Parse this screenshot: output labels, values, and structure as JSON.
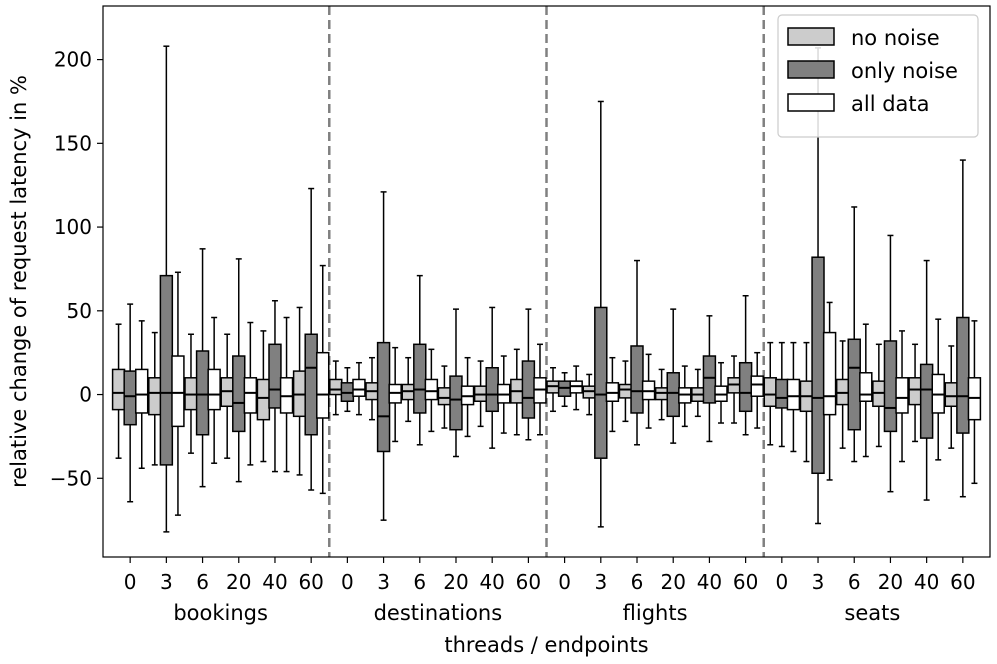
{
  "chart_data": {
    "type": "box",
    "title": "",
    "xlabel": "threads / endpoints",
    "ylabel": "relative change of request latency in %",
    "ylim": [
      -97,
      232
    ],
    "yticks": [
      -50,
      0,
      50,
      100,
      150,
      200
    ],
    "grid": false,
    "threads": [
      "0",
      "3",
      "6",
      "20",
      "40",
      "60"
    ],
    "endpoints": [
      "bookings",
      "destinations",
      "flights",
      "seats"
    ],
    "legend": {
      "position": "top-right",
      "entries": [
        {
          "name": "no noise",
          "color": "#cccccc"
        },
        {
          "name": "only noise",
          "color": "#808080"
        },
        {
          "name": "all data",
          "color": "#ffffff"
        }
      ]
    },
    "series": [
      {
        "name": "no noise",
        "color": "#cccccc",
        "boxes": [
          {
            "endpoint": "bookings",
            "threads": "0",
            "min": -38,
            "q1": -9,
            "median": 1,
            "q3": 15,
            "max": 42
          },
          {
            "endpoint": "bookings",
            "threads": "3",
            "min": -42,
            "q1": -12,
            "median": 1,
            "q3": 10,
            "max": 37
          },
          {
            "endpoint": "bookings",
            "threads": "6",
            "min": -35,
            "q1": -9,
            "median": 0,
            "q3": 10,
            "max": 36
          },
          {
            "endpoint": "bookings",
            "threads": "20",
            "min": -38,
            "q1": -7,
            "median": 2,
            "q3": 10,
            "max": 36
          },
          {
            "endpoint": "bookings",
            "threads": "40",
            "min": -40,
            "q1": -15,
            "median": -2,
            "q3": 9,
            "max": 38
          },
          {
            "endpoint": "bookings",
            "threads": "60",
            "min": -48,
            "q1": -13,
            "median": 0,
            "q3": 14,
            "max": 52
          },
          {
            "endpoint": "destinations",
            "threads": "0",
            "min": -12,
            "q1": 0,
            "median": 3,
            "q3": 9,
            "max": 20
          },
          {
            "endpoint": "destinations",
            "threads": "3",
            "min": -15,
            "q1": -3,
            "median": 2,
            "q3": 7,
            "max": 22
          },
          {
            "endpoint": "destinations",
            "threads": "6",
            "min": -16,
            "q1": -3,
            "median": 2,
            "q3": 6,
            "max": 22
          },
          {
            "endpoint": "destinations",
            "threads": "20",
            "min": -20,
            "q1": -6,
            "median": -2,
            "q3": 4,
            "max": 17
          },
          {
            "endpoint": "destinations",
            "threads": "40",
            "min": -19,
            "q1": -4,
            "median": 0,
            "q3": 5,
            "max": 20
          },
          {
            "endpoint": "destinations",
            "threads": "60",
            "min": -24,
            "q1": -5,
            "median": 2,
            "q3": 9,
            "max": 27
          },
          {
            "endpoint": "flights",
            "threads": "0",
            "min": -10,
            "q1": 1,
            "median": 5,
            "q3": 8,
            "max": 16
          },
          {
            "endpoint": "flights",
            "threads": "3",
            "min": -12,
            "q1": -2,
            "median": 2,
            "q3": 5,
            "max": 12
          },
          {
            "endpoint": "flights",
            "threads": "6",
            "min": -16,
            "q1": -2,
            "median": 3,
            "q3": 6,
            "max": 20
          },
          {
            "endpoint": "flights",
            "threads": "20",
            "min": -15,
            "q1": -3,
            "median": 1,
            "q3": 4,
            "max": 15
          },
          {
            "endpoint": "flights",
            "threads": "40",
            "min": -13,
            "q1": -4,
            "median": 0,
            "q3": 4,
            "max": 15
          },
          {
            "endpoint": "flights",
            "threads": "60",
            "min": -17,
            "q1": 1,
            "median": 6,
            "q3": 10,
            "max": 23
          },
          {
            "endpoint": "seats",
            "threads": "0",
            "min": -30,
            "q1": -7,
            "median": 0,
            "q3": 10,
            "max": 31
          },
          {
            "endpoint": "seats",
            "threads": "3",
            "min": -40,
            "q1": -10,
            "median": -1,
            "q3": 8,
            "max": 31
          },
          {
            "endpoint": "seats",
            "threads": "6",
            "min": -32,
            "q1": -6,
            "median": 1,
            "q3": 9,
            "max": 32
          },
          {
            "endpoint": "seats",
            "threads": "20",
            "min": -31,
            "q1": -7,
            "median": 1,
            "q3": 8,
            "max": 30
          },
          {
            "endpoint": "seats",
            "threads": "40",
            "min": -28,
            "q1": -6,
            "median": 3,
            "q3": 10,
            "max": 30
          },
          {
            "endpoint": "seats",
            "threads": "60",
            "min": -32,
            "q1": -7,
            "median": -1,
            "q3": 7,
            "max": 29
          }
        ]
      },
      {
        "name": "only noise",
        "color": "#808080",
        "boxes": [
          {
            "endpoint": "bookings",
            "threads": "0",
            "min": -64,
            "q1": -18,
            "median": -1,
            "q3": 14,
            "max": 54
          },
          {
            "endpoint": "bookings",
            "threads": "3",
            "min": -82,
            "q1": -42,
            "median": 1,
            "q3": 71,
            "max": 208
          },
          {
            "endpoint": "bookings",
            "threads": "6",
            "min": -55,
            "q1": -24,
            "median": 0,
            "q3": 26,
            "max": 87
          },
          {
            "endpoint": "bookings",
            "threads": "20",
            "min": -52,
            "q1": -22,
            "median": -5,
            "q3": 23,
            "max": 81
          },
          {
            "endpoint": "bookings",
            "threads": "40",
            "min": -46,
            "q1": -8,
            "median": 3,
            "q3": 30,
            "max": 56
          },
          {
            "endpoint": "bookings",
            "threads": "60",
            "min": -57,
            "q1": -24,
            "median": 16,
            "q3": 36,
            "max": 123
          },
          {
            "endpoint": "destinations",
            "threads": "0",
            "min": -10,
            "q1": -4,
            "median": 1,
            "q3": 7,
            "max": 16
          },
          {
            "endpoint": "destinations",
            "threads": "3",
            "min": -75,
            "q1": -34,
            "median": -13,
            "q3": 31,
            "max": 121
          },
          {
            "endpoint": "destinations",
            "threads": "6",
            "min": -30,
            "q1": -11,
            "median": 3,
            "q3": 30,
            "max": 71
          },
          {
            "endpoint": "destinations",
            "threads": "20",
            "min": -37,
            "q1": -21,
            "median": -3,
            "q3": 11,
            "max": 51
          },
          {
            "endpoint": "destinations",
            "threads": "40",
            "min": -32,
            "q1": -10,
            "median": 0,
            "q3": 16,
            "max": 52
          },
          {
            "endpoint": "destinations",
            "threads": "60",
            "min": -27,
            "q1": -14,
            "median": -2,
            "q3": 20,
            "max": 51
          },
          {
            "endpoint": "flights",
            "threads": "0",
            "min": -7,
            "q1": -1,
            "median": 4,
            "q3": 8,
            "max": 13
          },
          {
            "endpoint": "flights",
            "threads": "3",
            "min": -79,
            "q1": -38,
            "median": 0,
            "q3": 52,
            "max": 175
          },
          {
            "endpoint": "flights",
            "threads": "6",
            "min": -30,
            "q1": -11,
            "median": 2,
            "q3": 29,
            "max": 80
          },
          {
            "endpoint": "flights",
            "threads": "20",
            "min": -29,
            "q1": -13,
            "median": 1,
            "q3": 13,
            "max": 51
          },
          {
            "endpoint": "flights",
            "threads": "40",
            "min": -28,
            "q1": -5,
            "median": 10,
            "q3": 23,
            "max": 47
          },
          {
            "endpoint": "flights",
            "threads": "60",
            "min": -24,
            "q1": -10,
            "median": 1,
            "q3": 19,
            "max": 59
          },
          {
            "endpoint": "seats",
            "threads": "0",
            "min": -31,
            "q1": -8,
            "median": -2,
            "q3": 9,
            "max": 31
          },
          {
            "endpoint": "seats",
            "threads": "3",
            "min": -77,
            "q1": -47,
            "median": -2,
            "q3": 82,
            "max": 207
          },
          {
            "endpoint": "seats",
            "threads": "6",
            "min": -40,
            "q1": -21,
            "median": 16,
            "q3": 33,
            "max": 112
          },
          {
            "endpoint": "seats",
            "threads": "20",
            "min": -58,
            "q1": -22,
            "median": -8,
            "q3": 32,
            "max": 95
          },
          {
            "endpoint": "seats",
            "threads": "40",
            "min": -63,
            "q1": -26,
            "median": 3,
            "q3": 18,
            "max": 80
          },
          {
            "endpoint": "seats",
            "threads": "60",
            "min": -61,
            "q1": -23,
            "median": -1,
            "q3": 46,
            "max": 140
          }
        ]
      },
      {
        "name": "all data",
        "color": "#ffffff",
        "boxes": [
          {
            "endpoint": "bookings",
            "threads": "0",
            "min": -44,
            "q1": -11,
            "median": 0,
            "q3": 15,
            "max": 44
          },
          {
            "endpoint": "bookings",
            "threads": "3",
            "min": -72,
            "q1": -19,
            "median": 1,
            "q3": 23,
            "max": 73
          },
          {
            "endpoint": "bookings",
            "threads": "6",
            "min": -41,
            "q1": -9,
            "median": 0,
            "q3": 15,
            "max": 46
          },
          {
            "endpoint": "bookings",
            "threads": "20",
            "min": -42,
            "q1": -11,
            "median": 1,
            "q3": 10,
            "max": 43
          },
          {
            "endpoint": "bookings",
            "threads": "40",
            "min": -46,
            "q1": -11,
            "median": -1,
            "q3": 10,
            "max": 46
          },
          {
            "endpoint": "bookings",
            "threads": "60",
            "min": -59,
            "q1": -14,
            "median": 0,
            "q3": 25,
            "max": 77
          },
          {
            "endpoint": "destinations",
            "threads": "0",
            "min": -12,
            "q1": -1,
            "median": 3,
            "q3": 9,
            "max": 19
          },
          {
            "endpoint": "destinations",
            "threads": "3",
            "min": -28,
            "q1": -5,
            "median": 1,
            "q3": 6,
            "max": 28
          },
          {
            "endpoint": "destinations",
            "threads": "6",
            "min": -22,
            "q1": -3,
            "median": 2,
            "q3": 9,
            "max": 27
          },
          {
            "endpoint": "destinations",
            "threads": "20",
            "min": -25,
            "q1": -6,
            "median": -1,
            "q3": 5,
            "max": 22
          },
          {
            "endpoint": "destinations",
            "threads": "40",
            "min": -23,
            "q1": -5,
            "median": 0,
            "q3": 6,
            "max": 23
          },
          {
            "endpoint": "destinations",
            "threads": "60",
            "min": -24,
            "q1": -5,
            "median": 3,
            "q3": 10,
            "max": 30
          },
          {
            "endpoint": "flights",
            "threads": "0",
            "min": -9,
            "q1": 1,
            "median": 5,
            "q3": 8,
            "max": 17
          },
          {
            "endpoint": "flights",
            "threads": "3",
            "min": -22,
            "q1": -4,
            "median": 1,
            "q3": 7,
            "max": 22
          },
          {
            "endpoint": "flights",
            "threads": "6",
            "min": -20,
            "q1": -3,
            "median": 2,
            "q3": 8,
            "max": 24
          },
          {
            "endpoint": "flights",
            "threads": "20",
            "min": -19,
            "q1": -5,
            "median": 0,
            "q3": 4,
            "max": 17
          },
          {
            "endpoint": "flights",
            "threads": "40",
            "min": -17,
            "q1": -4,
            "median": 0,
            "q3": 5,
            "max": 19
          },
          {
            "endpoint": "flights",
            "threads": "60",
            "min": -20,
            "q1": -1,
            "median": 6,
            "q3": 11,
            "max": 25
          },
          {
            "endpoint": "seats",
            "threads": "0",
            "min": -34,
            "q1": -9,
            "median": -1,
            "q3": 9,
            "max": 31
          },
          {
            "endpoint": "seats",
            "threads": "3",
            "min": -51,
            "q1": -12,
            "median": -1,
            "q3": 37,
            "max": 55
          },
          {
            "endpoint": "seats",
            "threads": "6",
            "min": -37,
            "q1": -4,
            "median": 0,
            "q3": 13,
            "max": 42
          },
          {
            "endpoint": "seats",
            "threads": "20",
            "min": -40,
            "q1": -11,
            "median": -2,
            "q3": 10,
            "max": 38
          },
          {
            "endpoint": "seats",
            "threads": "40",
            "min": -39,
            "q1": -11,
            "median": 0,
            "q3": 12,
            "max": 45
          },
          {
            "endpoint": "seats",
            "threads": "60",
            "min": -53,
            "q1": -15,
            "median": -2,
            "q3": 10,
            "max": 44
          }
        ]
      }
    ]
  }
}
